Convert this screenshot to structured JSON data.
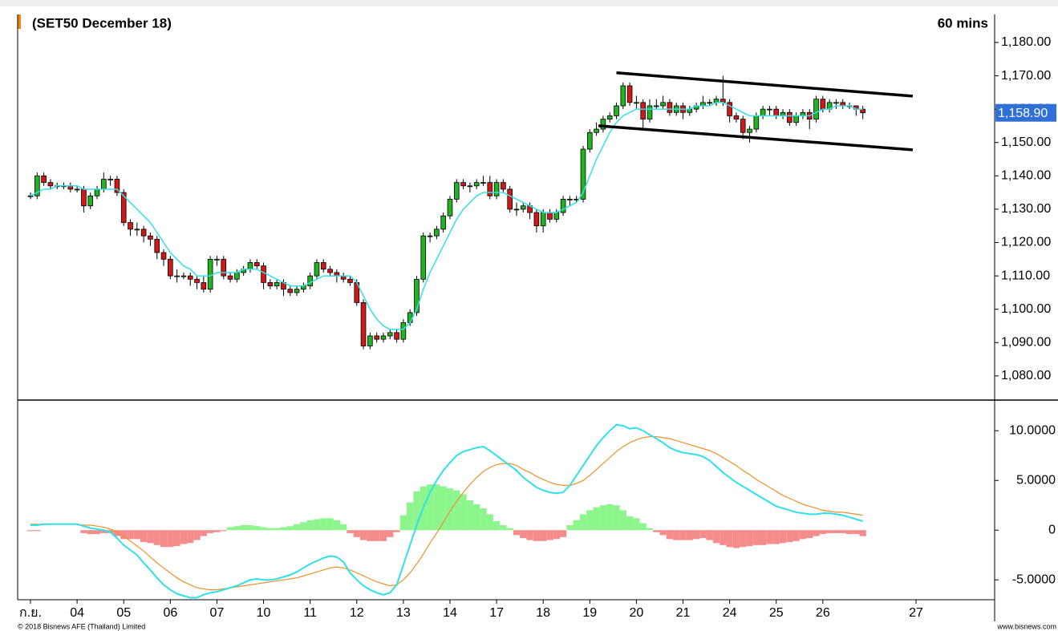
{
  "chart_data": {
    "type": "candlestick",
    "title": "(SET50 December 18)",
    "interval": "60 mins",
    "footer_left": "© 2018 Bisnews AFE (Thailand) Limited",
    "footer_right": "www.bisnews.com",
    "xlim": [
      -1.93,
      144.8
    ],
    "xticks": [
      {
        "value": 0,
        "label": "ก.ย."
      },
      {
        "value": 7,
        "label": "04"
      },
      {
        "value": 14,
        "label": "05"
      },
      {
        "value": 21,
        "label": "06"
      },
      {
        "value": 28,
        "label": "07"
      },
      {
        "value": 35,
        "label": "10"
      },
      {
        "value": 42,
        "label": "11"
      },
      {
        "value": 49,
        "label": "12"
      },
      {
        "value": 56,
        "label": "13"
      },
      {
        "value": 63,
        "label": "14"
      },
      {
        "value": 70,
        "label": "17"
      },
      {
        "value": 77,
        "label": "18"
      },
      {
        "value": 84,
        "label": "19"
      },
      {
        "value": 91,
        "label": "20"
      },
      {
        "value": 98,
        "label": "21"
      },
      {
        "value": 105,
        "label": "24"
      },
      {
        "value": 112,
        "label": "25"
      },
      {
        "value": 119,
        "label": "26"
      },
      {
        "value": 133,
        "label": "27"
      }
    ],
    "ylim": [
      1073,
      1188.4
    ],
    "yticks": [
      {
        "value": 1080,
        "label": "1,080.00"
      },
      {
        "value": 1090,
        "label": "1,090.00"
      },
      {
        "value": 1100,
        "label": "1,100.00"
      },
      {
        "value": 1110,
        "label": "1,110.00"
      },
      {
        "value": 1120,
        "label": "1,120.00"
      },
      {
        "value": 1130,
        "label": "1,130.00"
      },
      {
        "value": 1140,
        "label": "1,140.00"
      },
      {
        "value": 1150,
        "label": "1,150.00"
      },
      {
        "value": 1160,
        "label": "1,160.00"
      },
      {
        "value": 1170,
        "label": "1,170.00"
      },
      {
        "value": 1180,
        "label": "1,180.00"
      }
    ],
    "up_color": "#22b322",
    "down_color": "#d01818",
    "candles": {
      "open": [
        1134,
        1134,
        1140,
        1138,
        1137,
        1137,
        1137,
        1136,
        1136,
        1131,
        1134,
        1136,
        1139,
        1139,
        1135,
        1126,
        1124,
        1124,
        1122,
        1121,
        1117,
        1115,
        1110,
        1110,
        1110,
        1109,
        1108,
        1106,
        1115,
        1115,
        1110,
        1109,
        1111,
        1112,
        1114,
        1113,
        1108,
        1107,
        1108,
        1106,
        1105,
        1106,
        1107,
        1110,
        1114,
        1112,
        1111,
        1110,
        1109,
        1108,
        1102,
        1089,
        1092,
        1091,
        1092,
        1093,
        1091,
        1096,
        1099,
        1109,
        1122,
        1122,
        1124,
        1128,
        1133,
        1138,
        1137,
        1137,
        1138,
        1138,
        1134,
        1138,
        1136,
        1130,
        1130,
        1131,
        1129,
        1125,
        1129,
        1127,
        1129,
        1133,
        1133,
        1133,
        1148,
        1153,
        1154,
        1157,
        1158,
        1161,
        1167,
        1162,
        1162,
        1157,
        1161,
        1161,
        1162,
        1159,
        1161,
        1159,
        1160,
        1161,
        1162,
        1162,
        1163,
        1162,
        1158,
        1157,
        1153,
        1154,
        1158,
        1160,
        1160,
        1158,
        1159,
        1156,
        1158,
        1159,
        1157,
        1163,
        1160,
        1162,
        1162,
        1161,
        1161,
        1160
      ],
      "high": [
        1135,
        1141,
        1141,
        1139,
        1138,
        1138,
        1138,
        1137,
        1137,
        1135,
        1137,
        1141,
        1140,
        1140,
        1136,
        1127,
        1126,
        1125,
        1123,
        1122,
        1118,
        1116,
        1112,
        1111,
        1111,
        1110,
        1110,
        1116,
        1116,
        1116,
        1111,
        1112,
        1113,
        1115,
        1115,
        1114,
        1109,
        1109,
        1109,
        1107,
        1107,
        1108,
        1111,
        1115,
        1115,
        1113,
        1112,
        1111,
        1110,
        1109,
        1103,
        1093,
        1093,
        1093,
        1094,
        1094,
        1097,
        1100,
        1110,
        1123,
        1123,
        1125,
        1129,
        1134,
        1139,
        1139,
        1138,
        1139,
        1140,
        1140,
        1139,
        1139,
        1137,
        1132,
        1132,
        1132,
        1130,
        1130,
        1130,
        1130,
        1134,
        1134,
        1134,
        1149,
        1154,
        1156,
        1158,
        1159,
        1162,
        1168,
        1168,
        1164,
        1163,
        1163,
        1163,
        1164,
        1163,
        1162,
        1162,
        1161,
        1162,
        1164,
        1163,
        1164,
        1170,
        1163,
        1159,
        1158,
        1155,
        1159,
        1161,
        1161,
        1161,
        1160,
        1160,
        1159,
        1160,
        1160,
        1164,
        1164,
        1163,
        1163,
        1163,
        1162,
        1161,
        1161
      ],
      "low": [
        1133,
        1133,
        1137,
        1136,
        1136,
        1136,
        1135,
        1135,
        1129,
        1130,
        1133,
        1135,
        1137,
        1134,
        1125,
        1122,
        1122,
        1120,
        1119,
        1115,
        1113,
        1109,
        1108,
        1109,
        1107,
        1106,
        1105,
        1105,
        1113,
        1109,
        1108,
        1108,
        1110,
        1111,
        1112,
        1106,
        1106,
        1106,
        1104,
        1104,
        1104,
        1105,
        1106,
        1109,
        1111,
        1110,
        1108,
        1108,
        1107,
        1101,
        1088,
        1088,
        1090,
        1090,
        1091,
        1090,
        1090,
        1095,
        1098,
        1108,
        1120,
        1121,
        1123,
        1127,
        1132,
        1136,
        1135,
        1136,
        1137,
        1133,
        1133,
        1135,
        1129,
        1128,
        1129,
        1127,
        1123,
        1123,
        1126,
        1126,
        1128,
        1131,
        1132,
        1132,
        1147,
        1152,
        1153,
        1156,
        1157,
        1160,
        1161,
        1160,
        1154,
        1156,
        1160,
        1160,
        1158,
        1158,
        1157,
        1158,
        1159,
        1160,
        1161,
        1161,
        1161,
        1156,
        1156,
        1151,
        1150,
        1153,
        1157,
        1158,
        1157,
        1157,
        1155,
        1155,
        1157,
        1154,
        1156,
        1159,
        1159,
        1160,
        1160,
        1160,
        1158,
        1157
      ],
      "close": [
        1134,
        1140,
        1138,
        1137,
        1137,
        1137,
        1136,
        1136,
        1131,
        1134,
        1136,
        1139,
        1139,
        1135,
        1126,
        1124,
        1124,
        1122,
        1121,
        1117,
        1115,
        1110,
        1110,
        1110,
        1109,
        1108,
        1106,
        1115,
        1115,
        1110,
        1109,
        1111,
        1112,
        1114,
        1113,
        1108,
        1107,
        1108,
        1106,
        1105,
        1106,
        1107,
        1110,
        1114,
        1112,
        1111,
        1110,
        1109,
        1108,
        1102,
        1089,
        1092,
        1091,
        1092,
        1093,
        1091,
        1096,
        1099,
        1109,
        1122,
        1122,
        1124,
        1128,
        1133,
        1138,
        1137,
        1137,
        1138,
        1138,
        1134,
        1138,
        1136,
        1130,
        1130,
        1131,
        1129,
        1125,
        1129,
        1127,
        1129,
        1133,
        1133,
        1133,
        1148,
        1153,
        1154,
        1157,
        1158,
        1161,
        1167,
        1162,
        1162,
        1157,
        1161,
        1161,
        1162,
        1159,
        1161,
        1159,
        1160,
        1161,
        1162,
        1162,
        1163,
        1162,
        1158,
        1157,
        1153,
        1154,
        1158,
        1160,
        1160,
        1158,
        1159,
        1156,
        1158,
        1159,
        1157,
        1163,
        1160,
        1162,
        1162,
        1161,
        1161,
        1160,
        1158.9
      ]
    },
    "ma": {
      "color": "#33e0e8",
      "values": [
        1134,
        1135,
        1136,
        1136,
        1137,
        1137,
        1137,
        1137,
        1136,
        1136,
        1136,
        1136,
        1136,
        1136,
        1134,
        1132,
        1130,
        1128,
        1126,
        1123,
        1120,
        1117,
        1115,
        1113,
        1112,
        1110,
        1110,
        1110,
        1111,
        1111,
        1111,
        1111,
        1112,
        1112,
        1112,
        1111,
        1110,
        1109,
        1108,
        1107,
        1107,
        1107,
        1108,
        1109,
        1110,
        1110,
        1110,
        1110,
        1110,
        1108,
        1104,
        1100,
        1097,
        1095,
        1094,
        1094,
        1094,
        1096,
        1100,
        1106,
        1111,
        1115,
        1119,
        1123,
        1127,
        1130,
        1132,
        1134,
        1135,
        1135,
        1135,
        1135,
        1134,
        1133,
        1132,
        1131,
        1130,
        1129,
        1129,
        1129,
        1130,
        1131,
        1132,
        1135,
        1140,
        1145,
        1149,
        1153,
        1156,
        1158,
        1159,
        1160,
        1160,
        1160,
        1160,
        1160,
        1160,
        1160,
        1160,
        1160,
        1161,
        1161,
        1161,
        1162,
        1162,
        1161,
        1160,
        1159,
        1158,
        1158,
        1158,
        1158,
        1158,
        1158,
        1158,
        1158,
        1158,
        1158,
        1159,
        1160,
        1160,
        1161,
        1161,
        1161,
        1160,
        1160
      ]
    },
    "trendlines": [
      {
        "color": "#000000",
        "x": [
          88,
          132.5
        ],
        "y": [
          1170.9,
          1163.9
        ]
      },
      {
        "color": "#000000",
        "x": [
          85.3,
          132.5
        ],
        "y": [
          1155.0,
          1147.8
        ]
      }
    ],
    "last_price": {
      "value": 1158.9,
      "label": "1,158.90",
      "color": "#2e6fd8"
    },
    "indicator": {
      "ylim": [
        -7,
        13
      ],
      "yticks": [
        {
          "value": -5,
          "label": "-5.0000"
        },
        0,
        {
          "value": 5,
          "label": "5.0000"
        },
        {
          "value": 10,
          "label": "10.0000"
        }
      ],
      "macd": {
        "color": "#2ee0ea",
        "values": [
          0.5,
          0.5,
          0.6,
          0.6,
          0.6,
          0.6,
          0.6,
          0.6,
          0.4,
          0.2,
          0.1,
          0.0,
          -0.2,
          -0.8,
          -1.5,
          -2.0,
          -2.5,
          -3.3,
          -4.0,
          -4.8,
          -5.5,
          -6.0,
          -6.4,
          -6.6,
          -6.8,
          -6.8,
          -6.5,
          -6.3,
          -6.2,
          -6.0,
          -5.8,
          -5.6,
          -5.3,
          -5.0,
          -4.9,
          -5.0,
          -5.0,
          -4.9,
          -4.7,
          -4.5,
          -4.2,
          -3.8,
          -3.4,
          -3.1,
          -2.8,
          -2.6,
          -2.7,
          -3.2,
          -4.3,
          -5.0,
          -5.6,
          -6.0,
          -6.3,
          -6.5,
          -6.3,
          -5.5,
          -3.5,
          -1.5,
          0.5,
          2.3,
          3.8,
          5.0,
          6.0,
          6.8,
          7.5,
          7.9,
          8.1,
          8.3,
          8.4,
          8.0,
          7.5,
          7.0,
          6.5,
          6.0,
          5.3,
          4.8,
          4.3,
          4.0,
          3.8,
          3.7,
          3.8,
          4.5,
          5.5,
          6.5,
          7.5,
          8.5,
          9.3,
          10.0,
          10.6,
          10.5,
          10.2,
          10.3,
          10.0,
          9.6,
          9.2,
          8.8,
          8.3,
          8.0,
          7.8,
          7.7,
          7.6,
          7.4,
          7.0,
          6.4,
          5.8,
          5.3,
          4.8,
          4.4,
          4.0,
          3.6,
          3.2,
          2.8,
          2.4,
          2.2,
          2.0,
          1.8,
          1.7,
          1.6,
          1.6,
          1.7,
          1.7,
          1.6,
          1.5,
          1.3,
          1.1,
          0.9
        ]
      },
      "signal": {
        "color": "#f0902a",
        "values": [
          0.6,
          0.6,
          0.6,
          0.6,
          0.6,
          0.6,
          0.6,
          0.6,
          0.5,
          0.5,
          0.4,
          0.3,
          0.1,
          -0.2,
          -0.6,
          -1.1,
          -1.6,
          -2.1,
          -2.7,
          -3.3,
          -3.8,
          -4.3,
          -4.8,
          -5.2,
          -5.5,
          -5.8,
          -5.9,
          -6.0,
          -6.0,
          -5.9,
          -5.8,
          -5.7,
          -5.6,
          -5.5,
          -5.4,
          -5.3,
          -5.2,
          -5.1,
          -5.0,
          -4.9,
          -4.8,
          -4.6,
          -4.4,
          -4.2,
          -4.0,
          -3.8,
          -3.7,
          -3.8,
          -4.0,
          -4.3,
          -4.6,
          -4.9,
          -5.2,
          -5.4,
          -5.6,
          -5.5,
          -5.0,
          -4.3,
          -3.4,
          -2.4,
          -1.3,
          -0.3,
          0.8,
          1.9,
          2.9,
          3.8,
          4.6,
          5.3,
          5.9,
          6.3,
          6.6,
          6.7,
          6.7,
          6.5,
          6.1,
          5.8,
          5.4,
          5.1,
          4.8,
          4.6,
          4.5,
          4.5,
          4.7,
          5.0,
          5.5,
          6.1,
          6.7,
          7.3,
          7.9,
          8.4,
          8.8,
          9.1,
          9.3,
          9.4,
          9.4,
          9.3,
          9.2,
          9.0,
          8.8,
          8.6,
          8.4,
          8.2,
          8.0,
          7.7,
          7.3,
          6.9,
          6.5,
          6.0,
          5.6,
          5.1,
          4.7,
          4.3,
          3.9,
          3.5,
          3.2,
          2.9,
          2.6,
          2.4,
          2.2,
          2.0,
          1.9,
          1.8,
          1.8,
          1.7,
          1.6,
          1.5
        ]
      },
      "histogram": {
        "pos_color": "#8cf58c",
        "neg_color": "#f58c8c",
        "values": [
          -0.1,
          -0.1,
          0,
          0,
          0,
          0,
          0,
          0,
          -0.3,
          -0.4,
          -0.4,
          -0.3,
          -0.3,
          -0.6,
          -0.9,
          -0.9,
          -0.9,
          -1.2,
          -1.3,
          -1.5,
          -1.7,
          -1.7,
          -1.6,
          -1.4,
          -1.3,
          -1.0,
          -0.6,
          -0.3,
          -0.2,
          -0.1,
          0.3,
          0.4,
          0.5,
          0.5,
          0.4,
          0.3,
          0.2,
          0.2,
          0.3,
          0.4,
          0.6,
          0.8,
          1.0,
          1.1,
          1.2,
          1.2,
          1.0,
          0.6,
          -0.3,
          -0.7,
          -1.0,
          -1.1,
          -1.1,
          -1.1,
          -0.7,
          -0.2,
          1.5,
          2.8,
          3.9,
          4.4,
          4.6,
          4.6,
          4.4,
          4.2,
          4.0,
          3.6,
          3.0,
          2.6,
          2.2,
          1.6,
          0.9,
          0.5,
          0.2,
          -0.5,
          -0.8,
          -1.0,
          -1.1,
          -1.1,
          -1.0,
          -0.9,
          -0.7,
          0.5,
          1.0,
          1.6,
          2.0,
          2.3,
          2.5,
          2.6,
          2.5,
          2.0,
          1.4,
          1.2,
          0.7,
          0.2,
          -0.2,
          -0.5,
          -0.9,
          -1.0,
          -1.0,
          -1.0,
          -0.9,
          -0.8,
          -1.0,
          -1.3,
          -1.5,
          -1.7,
          -1.8,
          -1.7,
          -1.6,
          -1.5,
          -1.5,
          -1.4,
          -1.4,
          -1.3,
          -1.2,
          -1.1,
          -0.9,
          -0.8,
          -0.6,
          -0.4,
          -0.3,
          -0.3,
          -0.3,
          -0.4,
          -0.4,
          -0.6
        ]
      }
    }
  }
}
